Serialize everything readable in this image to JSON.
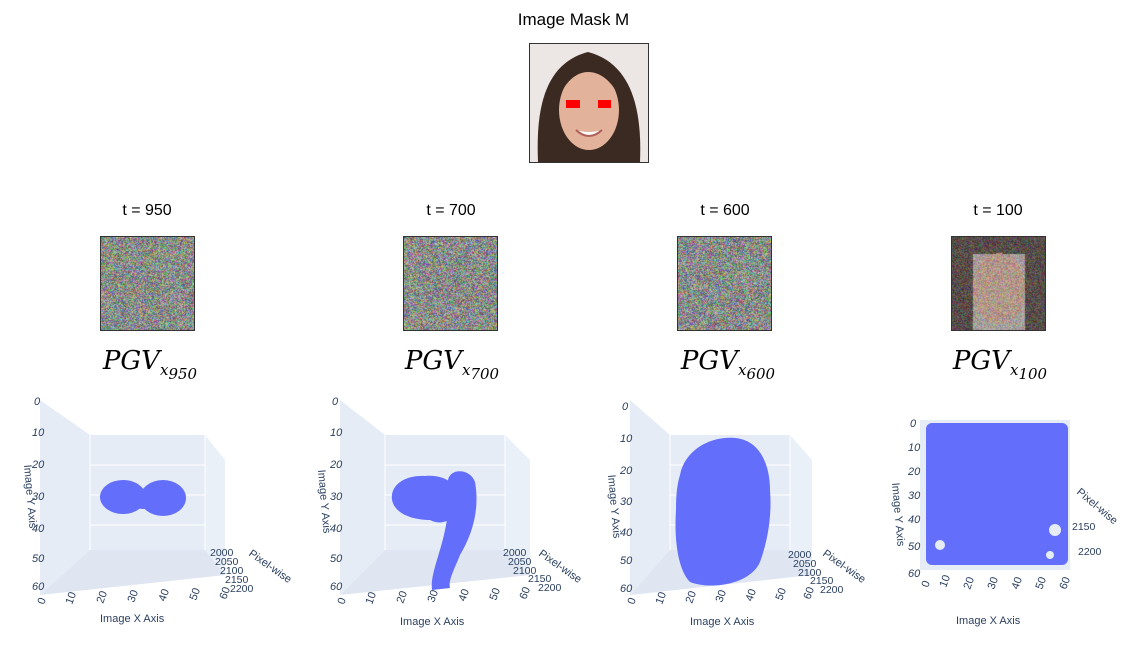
{
  "header": {
    "title": "Image Mask M"
  },
  "columns": [
    {
      "timestep_label": "t = 950",
      "pgv_base": "PGV",
      "pgv_sub_var": "x",
      "pgv_sub_num": "950",
      "axes": {
        "y_title": "Image Y Axis",
        "x_title": "Image X Axis",
        "z_title": "Pixel-wise",
        "y_ticks": [
          "0",
          "10",
          "20",
          "30",
          "40",
          "50",
          "60"
        ],
        "x_ticks": [
          "0",
          "10",
          "20",
          "30",
          "40",
          "50",
          "60"
        ],
        "z_ticks": [
          "2000",
          "2050",
          "2100",
          "2150",
          "2200"
        ]
      }
    },
    {
      "timestep_label": "t = 700",
      "pgv_base": "PGV",
      "pgv_sub_var": "x",
      "pgv_sub_num": "700",
      "axes": {
        "y_title": "Image Y Axis",
        "x_title": "Image X Axis",
        "z_title": "Pixel-wise",
        "y_ticks": [
          "0",
          "10",
          "20",
          "30",
          "40",
          "50",
          "60"
        ],
        "x_ticks": [
          "0",
          "10",
          "20",
          "30",
          "40",
          "50",
          "60"
        ],
        "z_ticks": [
          "2000",
          "2050",
          "2100",
          "2150",
          "2200"
        ]
      }
    },
    {
      "timestep_label": "t = 600",
      "pgv_base": "PGV",
      "pgv_sub_var": "x",
      "pgv_sub_num": "600",
      "axes": {
        "y_title": "Image Y Axis",
        "x_title": "Image X Axis",
        "z_title": "Pixel-wise",
        "y_ticks": [
          "0",
          "10",
          "20",
          "30",
          "40",
          "50",
          "60"
        ],
        "x_ticks": [
          "0",
          "10",
          "20",
          "30",
          "40",
          "50",
          "60"
        ],
        "z_ticks": [
          "2000",
          "2050",
          "2100",
          "2150",
          "2200"
        ]
      }
    },
    {
      "timestep_label": "t = 100",
      "pgv_base": "PGV",
      "pgv_sub_var": "x",
      "pgv_sub_num": "100",
      "axes": {
        "y_title": "Image Y Axis",
        "x_title": "Image X Axis",
        "z_title": "Pixel-wise",
        "y_ticks": [
          "0",
          "10",
          "20",
          "30",
          "40",
          "50",
          "60"
        ],
        "x_ticks": [
          "0",
          "10",
          "20",
          "30",
          "40",
          "50",
          "60"
        ],
        "z_ticks": [
          "2150",
          "2200"
        ]
      }
    }
  ],
  "colors": {
    "point": "#636efa",
    "plot_bg": "#e5ecf6",
    "tick_text": "#2a3f5f",
    "mask_mark": "#ff0000"
  }
}
